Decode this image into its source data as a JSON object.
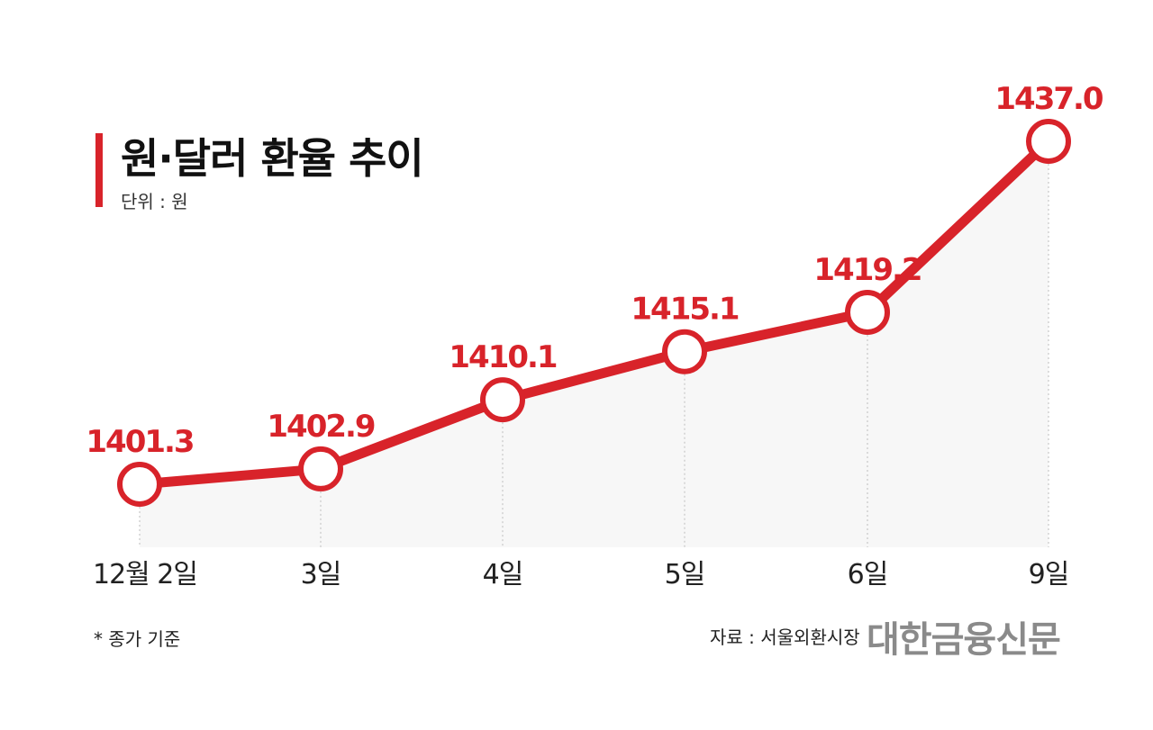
{
  "header": {
    "title": "원·달러 환율 추이",
    "unit": "단위 : 원"
  },
  "footer": {
    "note": "* 종가 기준",
    "source": "자료 : 서울외환시장",
    "brand": "대한금융신문"
  },
  "colors": {
    "accent": "#d8232a",
    "area": "#f7f7f7",
    "grid": "#c8c8c8"
  },
  "chart_data": {
    "type": "line",
    "title": "원·달러 환율 추이",
    "unit": "단위 : 원",
    "categories": [
      "12월 2일",
      "3일",
      "4일",
      "5일",
      "6일",
      "9일"
    ],
    "values": [
      1401.3,
      1402.9,
      1410.1,
      1415.1,
      1419.2,
      1437.0
    ],
    "value_labels": [
      "1401.3",
      "1402.9",
      "1410.1",
      "1415.1",
      "1419.2",
      "1437.0"
    ],
    "grid": false,
    "legend": "none"
  }
}
